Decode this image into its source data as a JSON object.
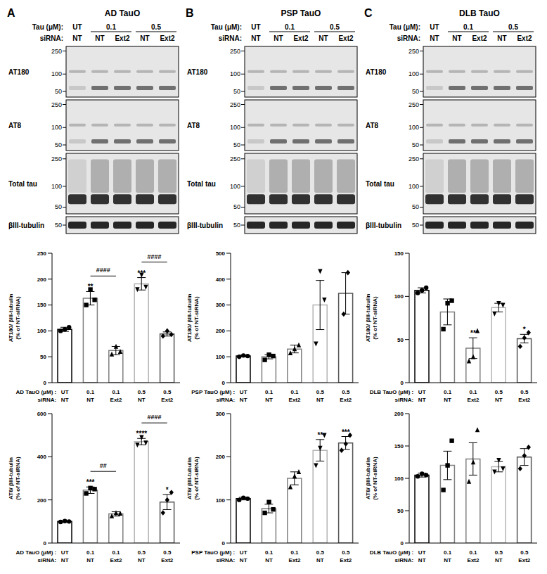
{
  "blots": [
    {
      "letter": "A",
      "title": "AD TauO",
      "rows": [
        {
          "label": "Tau (μM):",
          "cells": [
            {
              "text": "UT",
              "span": 1
            },
            {
              "text": "0.1",
              "span": 2
            },
            {
              "text": "0.5",
              "span": 2
            }
          ]
        },
        {
          "label": "siRNA:",
          "cells": [
            {
              "text": "NT",
              "span": 1
            },
            {
              "text": "NT",
              "span": 1
            },
            {
              "text": "Ext2",
              "span": 1
            },
            {
              "text": "NT",
              "span": 1
            },
            {
              "text": "Ext2",
              "span": 1
            }
          ]
        }
      ],
      "strips": [
        {
          "name": "AT180",
          "markers": [
            250,
            100,
            50
          ]
        },
        {
          "name": "AT8",
          "markers": [
            250,
            100,
            50
          ]
        },
        {
          "name": "Total tau",
          "markers": [
            250,
            100,
            50
          ]
        },
        {
          "name": "βIII-tubulin",
          "markers": [
            50
          ]
        }
      ]
    },
    {
      "letter": "B",
      "title": "PSP TauO",
      "rows": [
        {
          "label": "Tau (μM):",
          "cells": [
            {
              "text": "UT",
              "span": 1
            },
            {
              "text": "0.1",
              "span": 2
            },
            {
              "text": "0.5",
              "span": 2
            }
          ]
        },
        {
          "label": "siRNA:",
          "cells": [
            {
              "text": "NT",
              "span": 1
            },
            {
              "text": "NT",
              "span": 1
            },
            {
              "text": "Ext2",
              "span": 1
            },
            {
              "text": "NT",
              "span": 1
            },
            {
              "text": "Ext2",
              "span": 1
            }
          ]
        }
      ],
      "strips": [
        {
          "name": "AT180",
          "markers": [
            250,
            100,
            50
          ]
        },
        {
          "name": "AT8",
          "markers": [
            250,
            100,
            50
          ]
        },
        {
          "name": "Total tau",
          "markers": [
            250,
            100,
            50
          ]
        },
        {
          "name": "βIII-tubulin",
          "markers": [
            50
          ]
        }
      ]
    },
    {
      "letter": "C",
      "title": "DLB TauO",
      "rows": [
        {
          "label": "Tau (μM):",
          "cells": [
            {
              "text": "UT",
              "span": 1
            },
            {
              "text": "0.1",
              "span": 2
            },
            {
              "text": "0.5",
              "span": 2
            }
          ]
        },
        {
          "label": "siRNA:",
          "cells": [
            {
              "text": "NT",
              "span": 1
            },
            {
              "text": "NT",
              "span": 1
            },
            {
              "text": "Ext2",
              "span": 1
            },
            {
              "text": "NT",
              "span": 1
            },
            {
              "text": "Ext2",
              "span": 1
            }
          ]
        }
      ],
      "strips": [
        {
          "name": "AT180",
          "markers": [
            250,
            100,
            50
          ]
        },
        {
          "name": "AT8",
          "markers": [
            250,
            100,
            50
          ]
        },
        {
          "name": "Total tau",
          "markers": [
            250,
            100,
            50
          ]
        },
        {
          "name": "βIII-tubulin",
          "markers": [
            50
          ]
        }
      ]
    }
  ],
  "chart_data": [
    {
      "type": "bar",
      "y_label": [
        "AT180/ βIII-tubulin",
        "(% of NT-siRNA)"
      ],
      "categories": [
        "UT",
        "0.1",
        "0.1",
        "0.5",
        "0.5"
      ],
      "x_label": "AD TauO (μM) :",
      "second_row": {
        "label": "siRNA:",
        "values": [
          "NT",
          "NT",
          "Ext2",
          "NT",
          "Ext2"
        ]
      },
      "values": [
        103,
        163,
        62,
        191,
        94
      ],
      "errors": [
        4,
        13,
        8,
        12,
        4
      ],
      "points": [
        [
          100,
          103,
          107
        ],
        [
          150,
          180,
          160
        ],
        [
          55,
          70,
          60
        ],
        [
          180,
          208,
          185
        ],
        [
          90,
          100,
          93
        ]
      ],
      "colors": [
        "#000000",
        "#808080",
        "#808080",
        "#b5b5b5",
        "#555555"
      ],
      "ylim": [
        0,
        250
      ],
      "yticks": [
        0,
        50,
        100,
        150,
        200,
        250
      ],
      "significance": [
        null,
        "**",
        null,
        "***",
        null
      ],
      "brackets": [
        {
          "from": 1,
          "to": 2,
          "label": "####"
        },
        {
          "from": 3,
          "to": 4,
          "label": "####"
        }
      ]
    },
    {
      "type": "bar",
      "y_label": [
        "AT8/ βIII-tubulin",
        "(% of NT-siRNA)"
      ],
      "categories": [
        "UT",
        "0.1",
        "0.1",
        "0.5",
        "0.5"
      ],
      "x_label": "AD TauO (μM) :",
      "second_row": {
        "label": "siRNA:",
        "values": [
          "NT",
          "NT",
          "Ext2",
          "NT",
          "Ext2"
        ]
      },
      "values": [
        100,
        245,
        135,
        470,
        190
      ],
      "errors": [
        3,
        15,
        10,
        15,
        35
      ],
      "points": [
        [
          98,
          102,
          100
        ],
        [
          230,
          255,
          250
        ],
        [
          125,
          140,
          138
        ],
        [
          455,
          490,
          465
        ],
        [
          140,
          200,
          235
        ]
      ],
      "colors": [
        "#000000",
        "#808080",
        "#808080",
        "#b5b5b5",
        "#555555"
      ],
      "ylim": [
        0,
        600
      ],
      "yticks": [
        0,
        200,
        400,
        600
      ],
      "significance": [
        null,
        "***",
        null,
        "****",
        "*"
      ],
      "brackets": [
        {
          "from": 1,
          "to": 2,
          "label": "##"
        },
        {
          "from": 3,
          "to": 4,
          "label": "####"
        }
      ]
    },
    {
      "type": "bar",
      "y_label": [
        "AT180/ βIII-tubulin",
        "(% of NT-siRNA)"
      ],
      "categories": [
        "UT",
        "0.1",
        "0.1",
        "0.5",
        "0.5"
      ],
      "x_label": "PSP TauO (μM) :",
      "second_row": {
        "label": "siRNA:",
        "values": [
          "NT",
          "NT",
          "Ext2",
          "NT",
          "Ext2"
        ]
      },
      "values": [
        103,
        100,
        130,
        300,
        345
      ],
      "errors": [
        3,
        8,
        15,
        95,
        80
      ],
      "points": [
        [
          100,
          105,
          103
        ],
        [
          88,
          108,
          103
        ],
        [
          115,
          130,
          145
        ],
        [
          150,
          430,
          320
        ],
        [
          265,
          425
        ]
      ],
      "colors": [
        "#000000",
        "#808080",
        "#808080",
        "#b5b5b5",
        "#555555"
      ],
      "ylim": [
        0,
        500
      ],
      "yticks": [
        0,
        100,
        200,
        300,
        400,
        500
      ],
      "significance": [
        null,
        null,
        null,
        null,
        null
      ],
      "brackets": []
    },
    {
      "type": "bar",
      "y_label": [
        "AT8/ βIII-tubulin",
        "(% of NT-siRNA)"
      ],
      "categories": [
        "UT",
        "0.1",
        "0.1",
        "0.5",
        "0.5"
      ],
      "x_label": "PSP TauO (μM) :",
      "second_row": {
        "label": "siRNA:",
        "values": [
          "NT",
          "NT",
          "Ext2",
          "NT",
          "Ext2"
        ]
      },
      "values": [
        103,
        80,
        150,
        215,
        232
      ],
      "errors": [
        3,
        10,
        15,
        25,
        15
      ],
      "points": [
        [
          100,
          105,
          103
        ],
        [
          70,
          95,
          78
        ],
        [
          130,
          155,
          165
        ],
        [
          180,
          220,
          250
        ],
        [
          215,
          230,
          250
        ]
      ],
      "colors": [
        "#000000",
        "#808080",
        "#808080",
        "#b5b5b5",
        "#555555"
      ],
      "ylim": [
        0,
        300
      ],
      "yticks": [
        0,
        100,
        200,
        300
      ],
      "significance": [
        null,
        null,
        null,
        "**",
        "***"
      ],
      "brackets": []
    },
    {
      "type": "bar",
      "y_label": [
        "AT180/ βIII-tubulin",
        "(% of NT-siRNA)"
      ],
      "categories": [
        "UT",
        "0.1",
        "0.1",
        "0.5",
        "0.5"
      ],
      "x_label": "DLB TauO (μM) :",
      "second_row": {
        "label": "siRNA:",
        "values": [
          "NT",
          "NT",
          "Ext2",
          "NT",
          "Ext2"
        ]
      },
      "values": [
        107,
        82,
        40,
        87,
        51
      ],
      "errors": [
        3,
        15,
        12,
        5,
        5
      ],
      "points": [
        [
          104,
          107,
          110
        ],
        [
          62,
          92,
          95
        ],
        [
          25,
          30,
          60
        ],
        [
          80,
          92,
          90
        ],
        [
          42,
          52,
          58
        ]
      ],
      "colors": [
        "#000000",
        "#808080",
        "#808080",
        "#b5b5b5",
        "#555555"
      ],
      "ylim": [
        0,
        150
      ],
      "yticks": [
        0,
        50,
        100,
        150
      ],
      "significance": [
        null,
        null,
        "**",
        null,
        "*"
      ],
      "brackets": []
    },
    {
      "type": "bar",
      "y_label": [
        "AT8/ βIII-tubulin",
        "(% of NT-siRNA)"
      ],
      "categories": [
        "UT",
        "0.1",
        "0.1",
        "0.5",
        "0.5"
      ],
      "x_label": "DLB TauO (μM) :",
      "second_row": {
        "label": "siRNA:",
        "values": [
          "NT",
          "NT",
          "Ext2",
          "NT",
          "Ext2"
        ]
      },
      "values": [
        105,
        120,
        130,
        118,
        133
      ],
      "errors": [
        3,
        22,
        25,
        8,
        13
      ],
      "points": [
        [
          103,
          107,
          105
        ],
        [
          82,
          120,
          158
        ],
        [
          95,
          125,
          175
        ],
        [
          110,
          128,
          115
        ],
        [
          115,
          135,
          148
        ]
      ],
      "colors": [
        "#000000",
        "#808080",
        "#808080",
        "#b5b5b5",
        "#555555"
      ],
      "ylim": [
        0,
        200
      ],
      "yticks": [
        0,
        50,
        100,
        150,
        200
      ],
      "significance": [
        null,
        null,
        null,
        null,
        null
      ],
      "brackets": []
    }
  ]
}
